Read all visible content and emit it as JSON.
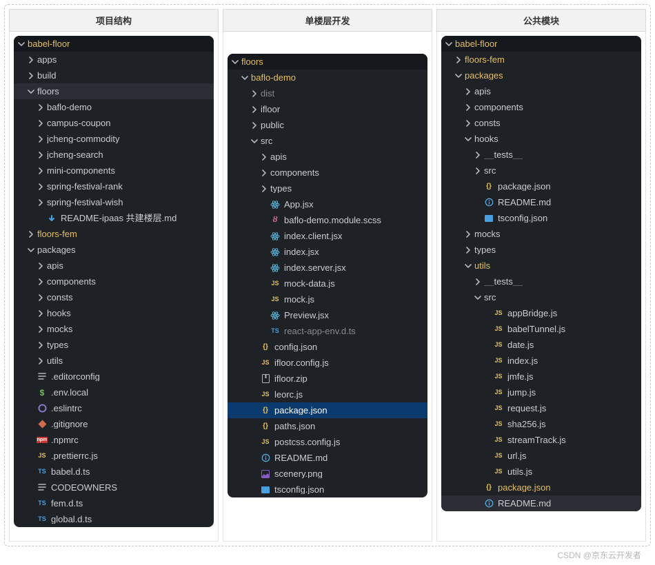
{
  "watermark": "CSDN @京东云开发者",
  "icon_colors": {
    "chevron": "#b3b7bd",
    "markdown_bg": "#4a9fe0",
    "js_fg": "#e8c35a",
    "ts_fg": "#4a9fe0",
    "json_fg": "#e8c35a",
    "json_fg_blue": "#ffffff",
    "readme_fg": "#4ea0d6",
    "scss_fg": "#d06d9a",
    "react_fg": "#58b2d6",
    "zip_fg": "#b3b7bd",
    "png_fg": "#8a5bbf",
    "dollar_fg": "#7dbb5a",
    "eslint_fg": "#8877c9",
    "git_fg": "#d36a4b",
    "npm_bg": "#c53635",
    "lines_fg": "#b3b7bd"
  },
  "columns": [
    {
      "title": "项目结构",
      "tree_margin_top": 0,
      "rows": [
        {
          "indent": 0,
          "chev": "down",
          "icon": "none",
          "text": "babel-floor",
          "cls": "root-row"
        },
        {
          "indent": 1,
          "chev": "right",
          "icon": "none",
          "text": "apps"
        },
        {
          "indent": 1,
          "chev": "right",
          "icon": "none",
          "text": "build"
        },
        {
          "indent": 1,
          "chev": "down",
          "icon": "none",
          "text": "floors",
          "cls": "hl-dark"
        },
        {
          "indent": 2,
          "chev": "right",
          "icon": "none",
          "text": "baflo-demo"
        },
        {
          "indent": 2,
          "chev": "right",
          "icon": "none",
          "text": "campus-coupon"
        },
        {
          "indent": 2,
          "chev": "right",
          "icon": "none",
          "text": "jcheng-commodity"
        },
        {
          "indent": 2,
          "chev": "right",
          "icon": "none",
          "text": "jcheng-search"
        },
        {
          "indent": 2,
          "chev": "right",
          "icon": "none",
          "text": "mini-components"
        },
        {
          "indent": 2,
          "chev": "right",
          "icon": "none",
          "text": "spring-festival-rank"
        },
        {
          "indent": 2,
          "chev": "right",
          "icon": "none",
          "text": "spring-festival-wish"
        },
        {
          "indent": 2,
          "chev": "",
          "icon": "markdown",
          "text": "README-ipaas 共建楼层.md"
        },
        {
          "indent": 1,
          "chev": "right",
          "icon": "none",
          "text": "floors-fem",
          "cls": "yellow"
        },
        {
          "indent": 1,
          "chev": "down",
          "icon": "none",
          "text": "packages"
        },
        {
          "indent": 2,
          "chev": "right",
          "icon": "none",
          "text": "apis"
        },
        {
          "indent": 2,
          "chev": "right",
          "icon": "none",
          "text": "components"
        },
        {
          "indent": 2,
          "chev": "right",
          "icon": "none",
          "text": "consts"
        },
        {
          "indent": 2,
          "chev": "right",
          "icon": "none",
          "text": "hooks"
        },
        {
          "indent": 2,
          "chev": "right",
          "icon": "none",
          "text": "mocks"
        },
        {
          "indent": 2,
          "chev": "right",
          "icon": "none",
          "text": "types"
        },
        {
          "indent": 2,
          "chev": "right",
          "icon": "none",
          "text": "utils"
        },
        {
          "indent": 1,
          "chev": "",
          "icon": "lines",
          "text": ".editorconfig"
        },
        {
          "indent": 1,
          "chev": "",
          "icon": "dollar",
          "text": ".env.local"
        },
        {
          "indent": 1,
          "chev": "",
          "icon": "eslint",
          "text": ".eslintrc"
        },
        {
          "indent": 1,
          "chev": "",
          "icon": "git",
          "text": ".gitignore"
        },
        {
          "indent": 1,
          "chev": "",
          "icon": "npm",
          "text": ".npmrc"
        },
        {
          "indent": 1,
          "chev": "",
          "icon": "js",
          "text": ".prettierrc.js"
        },
        {
          "indent": 1,
          "chev": "",
          "icon": "ts",
          "text": "babel.d.ts"
        },
        {
          "indent": 1,
          "chev": "",
          "icon": "lines",
          "text": "CODEOWNERS"
        },
        {
          "indent": 1,
          "chev": "",
          "icon": "ts",
          "text": "fem.d.ts"
        },
        {
          "indent": 1,
          "chev": "",
          "icon": "ts",
          "text": "global.d.ts"
        }
      ]
    },
    {
      "title": "单楼层开发",
      "tree_margin_top": 26,
      "rows": [
        {
          "indent": 0,
          "chev": "down",
          "icon": "none",
          "text": "floors",
          "cls": "root-row yellow"
        },
        {
          "indent": 1,
          "chev": "down",
          "icon": "none",
          "text": "baflo-demo",
          "cls": "yellow"
        },
        {
          "indent": 2,
          "chev": "right",
          "icon": "none",
          "text": "dist",
          "cls": "muted"
        },
        {
          "indent": 2,
          "chev": "right",
          "icon": "none",
          "text": "ifloor"
        },
        {
          "indent": 2,
          "chev": "right",
          "icon": "none",
          "text": "public"
        },
        {
          "indent": 2,
          "chev": "down",
          "icon": "none",
          "text": "src"
        },
        {
          "indent": 3,
          "chev": "right",
          "icon": "none",
          "text": "apis"
        },
        {
          "indent": 3,
          "chev": "right",
          "icon": "none",
          "text": "components"
        },
        {
          "indent": 3,
          "chev": "right",
          "icon": "none",
          "text": "types"
        },
        {
          "indent": 3,
          "chev": "",
          "icon": "react",
          "text": "App.jsx"
        },
        {
          "indent": 3,
          "chev": "",
          "icon": "scss",
          "text": "baflo-demo.module.scss"
        },
        {
          "indent": 3,
          "chev": "",
          "icon": "react",
          "text": "index.client.jsx"
        },
        {
          "indent": 3,
          "chev": "",
          "icon": "react",
          "text": "index.jsx"
        },
        {
          "indent": 3,
          "chev": "",
          "icon": "react",
          "text": "index.server.jsx"
        },
        {
          "indent": 3,
          "chev": "",
          "icon": "js",
          "text": "mock-data.js"
        },
        {
          "indent": 3,
          "chev": "",
          "icon": "js",
          "text": "mock.js"
        },
        {
          "indent": 3,
          "chev": "",
          "icon": "react",
          "text": "Preview.jsx"
        },
        {
          "indent": 3,
          "chev": "",
          "icon": "ts",
          "text": "react-app-env.d.ts",
          "cls": "muted"
        },
        {
          "indent": 2,
          "chev": "",
          "icon": "json",
          "text": "config.json"
        },
        {
          "indent": 2,
          "chev": "",
          "icon": "js",
          "text": "ifloor.config.js"
        },
        {
          "indent": 2,
          "chev": "",
          "icon": "zip",
          "text": "ifloor.zip"
        },
        {
          "indent": 2,
          "chev": "",
          "icon": "js",
          "text": "leorc.js"
        },
        {
          "indent": 2,
          "chev": "",
          "icon": "json",
          "text": "package.json",
          "cls": "hl-blue"
        },
        {
          "indent": 2,
          "chev": "",
          "icon": "json",
          "text": "paths.json"
        },
        {
          "indent": 2,
          "chev": "",
          "icon": "js",
          "text": "postcss.config.js"
        },
        {
          "indent": 2,
          "chev": "",
          "icon": "readme",
          "text": "README.md"
        },
        {
          "indent": 2,
          "chev": "",
          "icon": "png",
          "text": "scenery.png"
        },
        {
          "indent": 2,
          "chev": "",
          "icon": "tsconf",
          "text": "tsconfig.json"
        }
      ]
    },
    {
      "title": "公共模块",
      "tree_margin_top": 0,
      "rows": [
        {
          "indent": 0,
          "chev": "down",
          "icon": "none",
          "text": "babel-floor",
          "cls": "root-row yellow"
        },
        {
          "indent": 1,
          "chev": "right",
          "icon": "none",
          "text": "floors-fem",
          "cls": "yellow"
        },
        {
          "indent": 1,
          "chev": "down",
          "icon": "none",
          "text": "packages",
          "cls": "yellow"
        },
        {
          "indent": 2,
          "chev": "right",
          "icon": "none",
          "text": "apis"
        },
        {
          "indent": 2,
          "chev": "right",
          "icon": "none",
          "text": "components"
        },
        {
          "indent": 2,
          "chev": "right",
          "icon": "none",
          "text": "consts"
        },
        {
          "indent": 2,
          "chev": "down",
          "icon": "none",
          "text": "hooks"
        },
        {
          "indent": 3,
          "chev": "right",
          "icon": "none",
          "text": "__tests__"
        },
        {
          "indent": 3,
          "chev": "right",
          "icon": "none",
          "text": "src"
        },
        {
          "indent": 3,
          "chev": "",
          "icon": "json",
          "text": "package.json"
        },
        {
          "indent": 3,
          "chev": "",
          "icon": "readme",
          "text": "README.md"
        },
        {
          "indent": 3,
          "chev": "",
          "icon": "tsconf",
          "text": "tsconfig.json"
        },
        {
          "indent": 2,
          "chev": "right",
          "icon": "none",
          "text": "mocks"
        },
        {
          "indent": 2,
          "chev": "right",
          "icon": "none",
          "text": "types"
        },
        {
          "indent": 2,
          "chev": "down",
          "icon": "none",
          "text": "utils",
          "cls": "yellow"
        },
        {
          "indent": 3,
          "chev": "right",
          "icon": "none",
          "text": "__tests__"
        },
        {
          "indent": 3,
          "chev": "down",
          "icon": "none",
          "text": "src"
        },
        {
          "indent": 4,
          "chev": "",
          "icon": "js",
          "text": "appBridge.js"
        },
        {
          "indent": 4,
          "chev": "",
          "icon": "js",
          "text": "babelTunnel.js"
        },
        {
          "indent": 4,
          "chev": "",
          "icon": "js",
          "text": "date.js"
        },
        {
          "indent": 4,
          "chev": "",
          "icon": "js",
          "text": "index.js"
        },
        {
          "indent": 4,
          "chev": "",
          "icon": "js",
          "text": "jmfe.js"
        },
        {
          "indent": 4,
          "chev": "",
          "icon": "js",
          "text": "jump.js"
        },
        {
          "indent": 4,
          "chev": "",
          "icon": "js",
          "text": "request.js"
        },
        {
          "indent": 4,
          "chev": "",
          "icon": "js",
          "text": "sha256.js"
        },
        {
          "indent": 4,
          "chev": "",
          "icon": "js",
          "text": "streamTrack.js"
        },
        {
          "indent": 4,
          "chev": "",
          "icon": "js",
          "text": "url.js"
        },
        {
          "indent": 4,
          "chev": "",
          "icon": "js",
          "text": "utils.js"
        },
        {
          "indent": 3,
          "chev": "",
          "icon": "json",
          "text": "package.json",
          "cls": "yellow"
        },
        {
          "indent": 3,
          "chev": "",
          "icon": "readme",
          "text": "README.md",
          "cls": "hl-dark"
        }
      ]
    }
  ]
}
